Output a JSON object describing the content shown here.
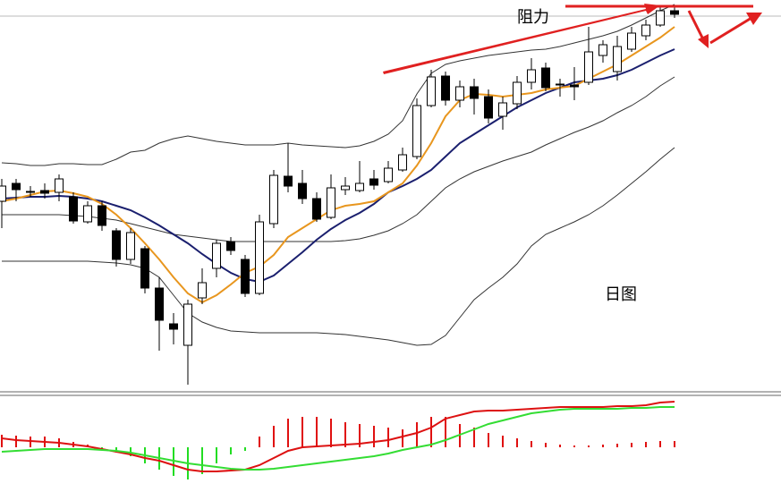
{
  "chart_data": [
    {
      "type": "candlestick",
      "ylim": [
        0,
        440
      ],
      "up_color": "#ffffff",
      "down_color": "#000000",
      "candle_stroke": "#000000",
      "annotations": [
        "阻力",
        "日图"
      ],
      "high": [
        240,
        240,
        232,
        235,
        245,
        225,
        215,
        215,
        185,
        185,
        165,
        130,
        90,
        105,
        140,
        172,
        175,
        155,
        200,
        250,
        280,
        250,
        225,
        245,
        242,
        260,
        250,
        260,
        275,
        330,
        362,
        360,
        350,
        352,
        340,
        332,
        355,
        375,
        370,
        352,
        365,
        410,
        395,
        400,
        410,
        418,
        432,
        432
      ],
      "open": [
        215,
        235,
        225,
        227,
        225,
        220,
        192,
        210,
        182,
        150,
        162,
        118,
        78,
        54,
        107,
        140,
        170,
        150,
        112,
        190,
        243,
        235,
        218,
        197,
        228,
        227,
        240,
        237,
        250,
        265,
        322,
        355,
        328,
        343,
        332,
        310,
        324,
        348,
        364,
        345,
        345,
        348,
        378,
        360,
        385,
        400,
        412,
        428
      ],
      "close": [
        232,
        228,
        226,
        224,
        240,
        193,
        210,
        188,
        150,
        180,
        118,
        82,
        72,
        100,
        124,
        168,
        160,
        112,
        192,
        244,
        232,
        218,
        195,
        230,
        232,
        235,
        233,
        252,
        267,
        322,
        354,
        328,
        343,
        330,
        308,
        325,
        348,
        362,
        342,
        346,
        343,
        382,
        390,
        388,
        403,
        412,
        428,
        424
      ],
      "low": [
        185,
        215,
        220,
        218,
        215,
        190,
        190,
        182,
        142,
        145,
        112,
        48,
        55,
        10,
        100,
        130,
        155,
        108,
        110,
        185,
        225,
        212,
        192,
        195,
        222,
        225,
        228,
        235,
        248,
        262,
        320,
        322,
        320,
        312,
        302,
        295,
        318,
        340,
        338,
        332,
        328,
        345,
        370,
        350,
        382,
        395,
        410,
        420
      ],
      "overlays": [
        {
          "color": "#333333",
          "values": [
            258,
            257,
            255,
            255,
            257,
            257,
            256,
            256,
            262,
            270,
            272,
            280,
            285,
            288,
            285,
            282,
            280,
            278,
            278,
            278,
            280,
            278,
            277,
            276,
            275,
            277,
            282,
            290,
            305,
            335,
            358,
            368,
            372,
            375,
            378,
            380,
            382,
            384,
            385,
            388,
            392,
            396,
            400,
            405,
            412,
            420,
            428,
            435
          ]
        },
        {
          "color": "#333333",
          "values": [
            200,
            200,
            200,
            200,
            200,
            199,
            198,
            196,
            194,
            190,
            186,
            182,
            178,
            176,
            174,
            172,
            170,
            170,
            170,
            170,
            170,
            170,
            170,
            170,
            171,
            173,
            177,
            182,
            190,
            200,
            215,
            230,
            240,
            248,
            254,
            260,
            265,
            270,
            278,
            285,
            292,
            298,
            305,
            314,
            322,
            332,
            344,
            354
          ]
        },
        {
          "color": "#333333",
          "values": [
            148,
            148,
            148,
            148,
            148,
            148,
            148,
            147,
            146,
            144,
            140,
            130,
            110,
            90,
            80,
            74,
            70,
            69,
            68,
            68,
            68,
            68,
            68,
            67,
            66,
            64,
            62,
            60,
            57,
            54,
            55,
            65,
            85,
            105,
            118,
            130,
            145,
            165,
            178,
            185,
            192,
            200,
            210,
            222,
            235,
            248,
            262,
            275
          ]
        },
        {
          "color": "#1a1f6e",
          "values": [
            218,
            219,
            220,
            220,
            221,
            220,
            218,
            215,
            210,
            205,
            197,
            188,
            178,
            168,
            156,
            145,
            135,
            128,
            125,
            132,
            145,
            158,
            172,
            184,
            194,
            202,
            212,
            225,
            232,
            240,
            250,
            265,
            280,
            290,
            300,
            310,
            320,
            328,
            336,
            342,
            348,
            350,
            352,
            356,
            362,
            370,
            378,
            385
          ]
        },
        {
          "color": "#e8961e",
          "values": [
            215,
            218,
            222,
            226,
            227,
            224,
            220,
            212,
            200,
            185,
            168,
            150,
            130,
            112,
            102,
            110,
            122,
            135,
            142,
            155,
            175,
            185,
            195,
            205,
            210,
            212,
            215,
            225,
            235,
            255,
            280,
            310,
            328,
            335,
            334,
            332,
            334,
            336,
            340,
            342,
            344,
            352,
            360,
            368,
            378,
            388,
            398,
            410
          ]
        }
      ]
    },
    {
      "type": "macd",
      "ylim": [
        -50,
        55
      ],
      "positive_color": "#e01010",
      "negative_color": "#22dd22",
      "histogram": [
        14,
        13,
        12,
        12,
        10,
        6,
        3,
        -3,
        -6,
        -10,
        -18,
        -25,
        -32,
        -36,
        -30,
        -18,
        -8,
        -4,
        12,
        24,
        32,
        34,
        34,
        32,
        28,
        26,
        24,
        22,
        20,
        28,
        34,
        34,
        26,
        22,
        16,
        13,
        10,
        7,
        5,
        3,
        2,
        2,
        3,
        4,
        5,
        6,
        7,
        7
      ],
      "lines": [
        {
          "color": "#dd1111",
          "values": [
            10,
            8,
            7,
            6,
            5,
            3,
            1,
            -2,
            -5,
            -8,
            -12,
            -15,
            -20,
            -25,
            -27,
            -27,
            -26,
            -25,
            -20,
            -12,
            -4,
            0,
            1,
            2,
            3,
            4,
            6,
            8,
            12,
            16,
            22,
            32,
            36,
            40,
            41,
            41,
            42,
            43,
            44,
            45,
            45,
            45,
            45,
            46,
            46,
            47,
            50,
            51
          ]
        },
        {
          "color": "#33dd33",
          "values": [
            -5,
            -4,
            -3,
            -2,
            -2,
            -2,
            -2,
            -3,
            -4,
            -6,
            -9,
            -12,
            -15,
            -18,
            -20,
            -22,
            -24,
            -25,
            -25,
            -24,
            -22,
            -20,
            -18,
            -16,
            -14,
            -12,
            -10,
            -7,
            -3,
            0,
            3,
            8,
            14,
            20,
            26,
            30,
            34,
            38,
            40,
            42,
            43,
            43,
            43,
            43,
            44,
            44,
            45,
            45
          ]
        }
      ]
    }
  ]
}
